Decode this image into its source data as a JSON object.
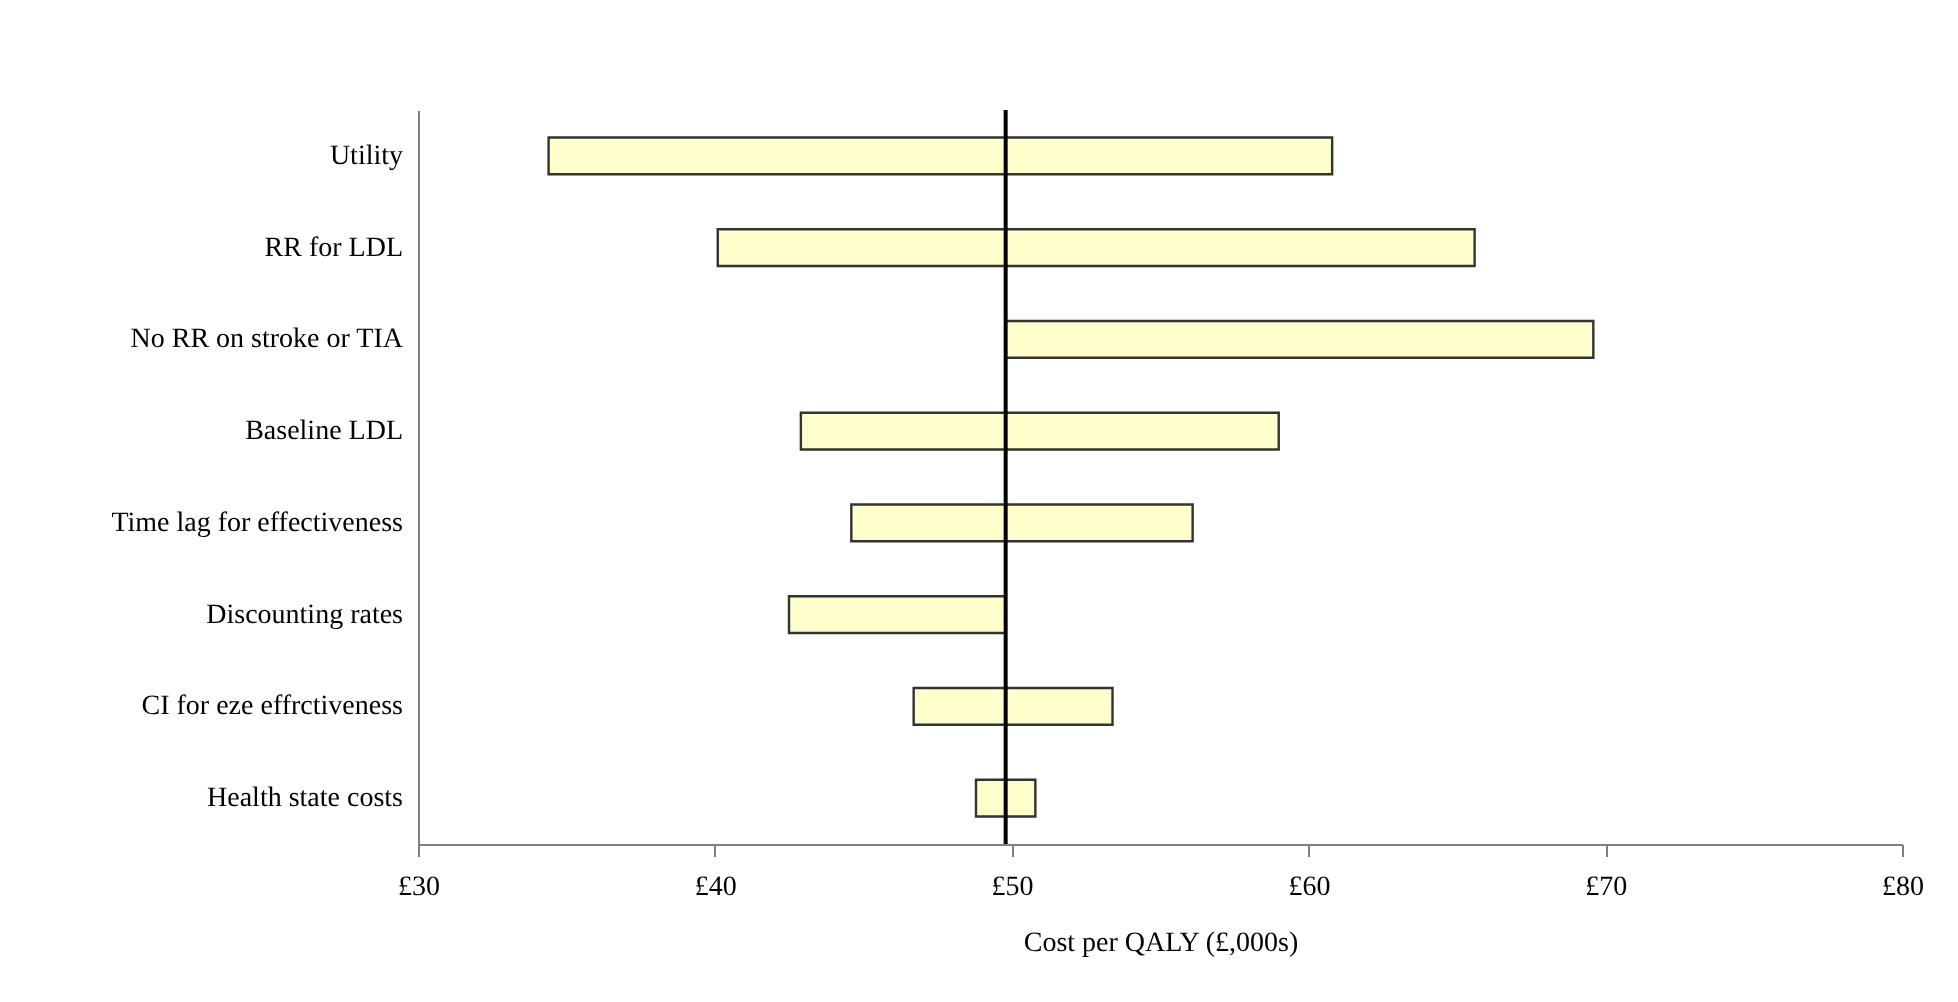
{
  "chart_data": {
    "type": "bar",
    "orientation": "horizontal",
    "xlabel": "Cost per QALY (£,000s)",
    "categories": [
      "Utility",
      "RR for LDL",
      "No RR on stroke or TIA",
      "Baseline LDL",
      "Time lag for effectiveness",
      "Discounting rates",
      "CI for eze effrctiveness",
      "Health state costs"
    ],
    "base": [
      34.4,
      40.1,
      49.8,
      42.9,
      44.6,
      42.5,
      46.7,
      48.8
    ],
    "values": [
      26.4,
      25.5,
      19.8,
      16.1,
      11.5,
      7.3,
      6.7,
      2.0
    ],
    "color": "#ffffcc",
    "xlim": [
      30,
      80
    ],
    "xticks": [
      {
        "value": 30,
        "label": "£30"
      },
      {
        "value": 40,
        "label": "£40"
      },
      {
        "value": 50,
        "label": "£50"
      },
      {
        "value": 60,
        "label": "£60"
      },
      {
        "value": 70,
        "label": "£70"
      },
      {
        "value": 80,
        "label": "£80"
      }
    ],
    "ref_lines": [
      {
        "axis": "x",
        "value": 49.8,
        "color": "#000000"
      }
    ],
    "grid": false
  }
}
